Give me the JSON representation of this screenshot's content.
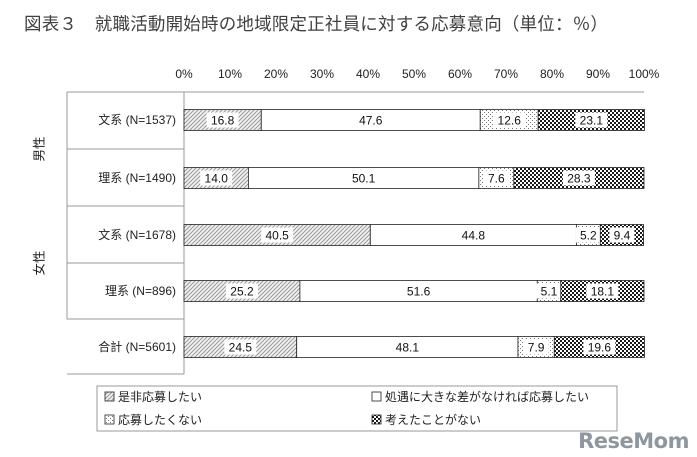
{
  "chart_data": {
    "type": "bar",
    "stacked": true,
    "orientation": "horizontal",
    "title": "図表３　就職活動開始時の地域限定正社員に対する応募意向（単位：％）",
    "xlim": [
      0,
      100
    ],
    "x_ticks": [
      "0%",
      "10%",
      "20%",
      "30%",
      "40%",
      "50%",
      "60%",
      "70%",
      "80%",
      "90%",
      "100%"
    ],
    "groups": [
      {
        "label": "男性",
        "rows": [
          0,
          1
        ]
      },
      {
        "label": "女性",
        "rows": [
          2,
          3
        ]
      }
    ],
    "categories": [
      "文系 (N=1537)",
      "理系 (N=1490)",
      "文系 (N=1678)",
      "理系 (N=896)",
      "合計 (N=5601)"
    ],
    "series": [
      {
        "name": "是非応募したい",
        "values": [
          16.8,
          14.0,
          40.5,
          25.2,
          24.5
        ],
        "labels": [
          "16.8",
          "14.0",
          "40.5",
          "25.2",
          "24.5"
        ],
        "pattern": "hatch"
      },
      {
        "name": "処遇に大きな差がなければ応募したい",
        "values": [
          47.6,
          50.1,
          44.8,
          51.6,
          48.1
        ],
        "labels": [
          "47.6",
          "50.1",
          "44.8",
          "51.6",
          "48.1"
        ],
        "pattern": "blank"
      },
      {
        "name": "応募したくない",
        "values": [
          12.6,
          7.6,
          5.2,
          5.1,
          7.9
        ],
        "labels": [
          "12.6",
          "7.6",
          "5.2",
          "5.1",
          "7.9"
        ],
        "pattern": "dots"
      },
      {
        "name": "考えたことがない",
        "values": [
          23.1,
          28.3,
          9.4,
          18.1,
          19.6
        ],
        "labels": [
          "23.1",
          "28.3",
          "9.4",
          "18.1",
          "19.6"
        ],
        "pattern": "check"
      }
    ],
    "legend_position": "bottom",
    "gridlines": false
  },
  "watermark": "ReseMom"
}
